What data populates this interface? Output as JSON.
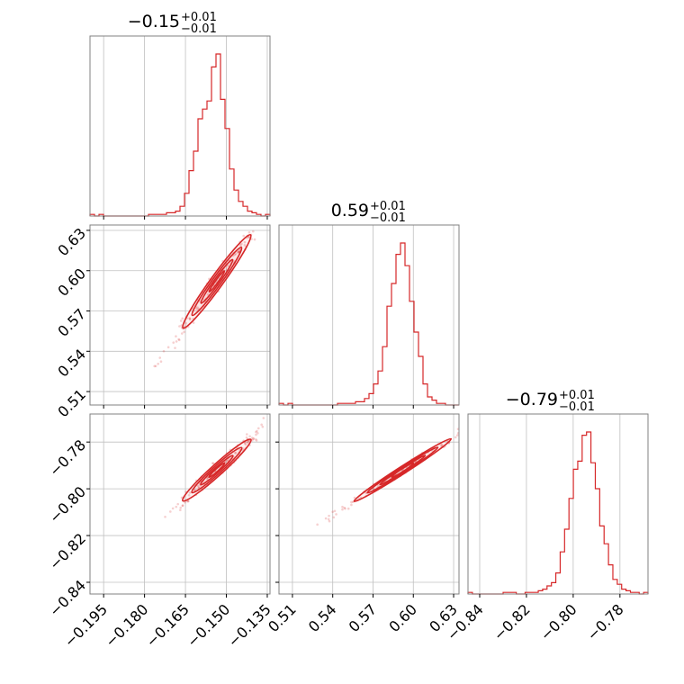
{
  "chart_data": {
    "type": "corner",
    "color": "#d62728",
    "grid": true,
    "parameters": [
      {
        "title_value": "−0.15",
        "title_plus": "+0.01",
        "title_minus": "−0.01",
        "range": [
          -0.2,
          -0.134
        ],
        "ticks": [
          -0.195,
          -0.18,
          -0.165,
          -0.15,
          -0.135
        ],
        "tick_labels": [
          "−0.195",
          "−0.180",
          "−0.165",
          "−0.150",
          "−0.135"
        ]
      },
      {
        "title_value": "0.59",
        "title_plus": "+0.01",
        "title_minus": "−0.01",
        "range": [
          0.5,
          0.634
        ],
        "ticks": [
          0.51,
          0.54,
          0.57,
          0.6,
          0.63
        ],
        "tick_labels": [
          "0.51",
          "0.54",
          "0.57",
          "0.60",
          "0.63"
        ]
      },
      {
        "title_value": "−0.79",
        "title_plus": "+0.01",
        "title_minus": "−0.01",
        "range": [
          -0.845,
          -0.768
        ],
        "ticks": [
          -0.84,
          -0.82,
          -0.8,
          -0.78
        ],
        "tick_labels": [
          "−0.84",
          "−0.82",
          "−0.80",
          "−0.78"
        ]
      }
    ],
    "histograms": [
      {
        "counts": [
          1,
          0,
          1,
          0,
          0,
          0,
          0,
          0,
          0,
          0,
          0,
          0,
          0,
          1,
          1,
          1,
          1,
          2,
          2,
          3,
          6,
          14,
          28,
          40,
          60,
          66,
          71,
          92,
          100,
          72,
          54,
          29,
          16,
          9,
          6,
          3,
          2,
          1,
          0,
          1
        ]
      },
      {
        "counts": [
          1,
          0,
          1,
          0,
          0,
          0,
          0,
          0,
          0,
          0,
          0,
          0,
          0,
          1,
          1,
          1,
          1,
          2,
          2,
          4,
          7,
          13,
          21,
          36,
          61,
          75,
          93,
          100,
          86,
          64,
          45,
          30,
          13,
          5,
          3,
          1,
          1,
          0,
          0,
          0
        ]
      },
      {
        "counts": [
          1,
          0,
          0,
          0,
          0,
          0,
          0,
          0,
          1,
          1,
          1,
          0,
          0,
          1,
          1,
          1,
          2,
          3,
          5,
          7,
          13,
          26,
          40,
          59,
          77,
          82,
          98,
          100,
          81,
          65,
          42,
          31,
          18,
          9,
          6,
          3,
          2,
          1,
          1,
          0,
          1
        ]
      }
    ],
    "correlations": [
      {
        "x": 0,
        "y": 1,
        "center": [
          -0.1535,
          0.592
        ],
        "slope": 2.8,
        "band_width": 0.006,
        "core_half_length": 0.012,
        "scatter_half_length": 0.04
      },
      {
        "x": 0,
        "y": 2,
        "center": [
          -0.1535,
          -0.792
        ],
        "slope": 1.05,
        "band_width": 0.003,
        "core_half_length": 0.012,
        "scatter_half_length": 0.04
      },
      {
        "x": 1,
        "y": 2,
        "center": [
          0.592,
          -0.792
        ],
        "slope": 0.37,
        "band_width": 0.0015,
        "core_half_length": 0.035,
        "scatter_half_length": 0.11
      }
    ]
  }
}
